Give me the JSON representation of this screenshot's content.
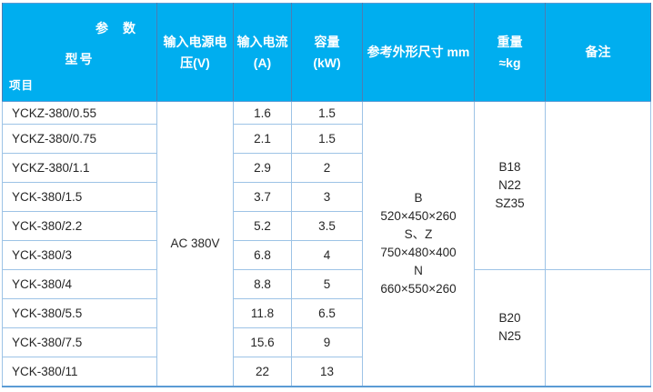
{
  "table": {
    "header": {
      "corner": {
        "top_right": "参数",
        "middle": "型号",
        "bottom_left": "项目"
      },
      "voltage_line1": "输入电源电",
      "voltage_line2": "压(V)",
      "current_line1": "输入电流",
      "current_line2": "(A)",
      "capacity_line1": "容量",
      "capacity_line2": "(kW)",
      "dimensions_label": "参考外形尺寸 mm",
      "weight_line1": "重量",
      "weight_line2": "≈kg",
      "remark_label": "备注"
    },
    "voltage_merged": "AC 380V",
    "dimensions_lines": [
      "B",
      "520×450×260",
      "S、Z",
      "750×480×400",
      "N",
      "660×550×260"
    ],
    "weight_group1": [
      "B18",
      "N22",
      "SZ35"
    ],
    "weight_group2": [
      "B20",
      "N25"
    ],
    "remark_group1": "",
    "remark_group2": "",
    "rows": [
      {
        "model": "YCKZ-380/0.55",
        "current": "1.6",
        "capacity": "1.5"
      },
      {
        "model": "YCKZ-380/0.75",
        "current": "2.1",
        "capacity": "1.5"
      },
      {
        "model": "YCKZ-380/1.1",
        "current": "2.9",
        "capacity": "2"
      },
      {
        "model": "YCK-380/1.5",
        "current": "3.7",
        "capacity": "3"
      },
      {
        "model": "YCK-380/2.2",
        "current": "5.2",
        "capacity": "3.5"
      },
      {
        "model": "YCK-380/3",
        "current": "6.8",
        "capacity": "4"
      },
      {
        "model": "YCK-380/4",
        "current": "8.8",
        "capacity": "5"
      },
      {
        "model": "YCK-380/5.5",
        "current": "11.8",
        "capacity": "6.5"
      },
      {
        "model": "YCK-380/7.5",
        "current": "15.6",
        "capacity": "9"
      },
      {
        "model": "YCK-380/11",
        "current": "22",
        "capacity": "13"
      }
    ],
    "colors": {
      "header_bg": "#00AEEF",
      "grid_line": "#9DC3E6",
      "outer_border": "#5B9BD5",
      "header_divider": "#4A7EB5",
      "header_text": "#FFFFFF",
      "body_text": "#262626"
    }
  }
}
